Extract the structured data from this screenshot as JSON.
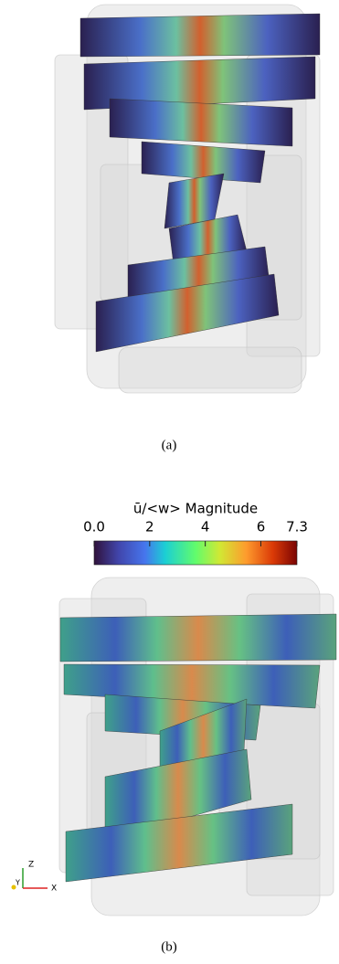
{
  "figure": {
    "caption_a": "(a)",
    "caption_b": "(b)",
    "colorbar": {
      "title": "ū/<w> Magnitude",
      "lim": [
        0,
        7.3
      ],
      "ticks": [
        {
          "value": 0,
          "label": "0.0"
        },
        2,
        4,
        6,
        7.3
      ]
    },
    "axes_triad": {
      "z": "Z",
      "y": "Y",
      "x": "X"
    }
  }
}
